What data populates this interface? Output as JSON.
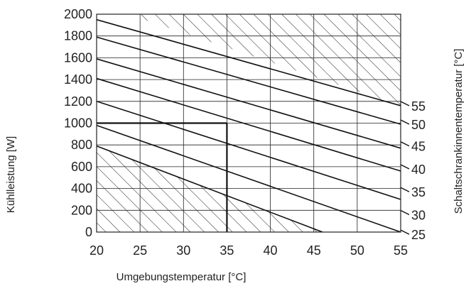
{
  "chart_data": {
    "type": "line",
    "xlabel": "Umgebungstemperatur [°C]",
    "ylabel": "Kühlleistung [W]",
    "y2label": "Schaltschrankinnentemperatur [°C]",
    "xlim": [
      20,
      55
    ],
    "ylim": [
      0,
      2000
    ],
    "x_ticks": [
      "20",
      "25",
      "30",
      "35",
      "40",
      "45",
      "50",
      "55"
    ],
    "y_ticks": [
      "0",
      "200",
      "400",
      "600",
      "800",
      "1000",
      "1200",
      "1400",
      "1600",
      "1800",
      "2000"
    ],
    "grid": true,
    "series": [
      {
        "name": "25",
        "points": [
          [
            20,
            790
          ],
          [
            46,
            0
          ]
        ]
      },
      {
        "name": "30",
        "points": [
          [
            20,
            980
          ],
          [
            55,
            0
          ]
        ]
      },
      {
        "name": "35",
        "points": [
          [
            20,
            1200
          ],
          [
            55,
            300
          ]
        ]
      },
      {
        "name": "40",
        "points": [
          [
            20,
            1410
          ],
          [
            55,
            560
          ]
        ]
      },
      {
        "name": "45",
        "points": [
          [
            20,
            1590
          ],
          [
            55,
            770
          ]
        ]
      },
      {
        "name": "50",
        "points": [
          [
            20,
            1790
          ],
          [
            55,
            990
          ]
        ]
      },
      {
        "name": "55",
        "points": [
          [
            20,
            1950
          ],
          [
            55,
            1160
          ]
        ]
      }
    ],
    "right_labels": [
      {
        "text": "55",
        "y": 1160
      },
      {
        "text": "50",
        "y": 990
      },
      {
        "text": "45",
        "y": 790
      },
      {
        "text": "40",
        "y": 580
      },
      {
        "text": "35",
        "y": 370
      },
      {
        "text": "30",
        "y": 160
      },
      {
        "text": "25",
        "y": -20
      }
    ],
    "hatched_regions": [
      {
        "polygon": [
          [
            20,
            0
          ],
          [
            20,
            790
          ],
          [
            46,
            0
          ]
        ]
      },
      {
        "polygon": [
          [
            23.6,
            2000
          ],
          [
            55,
            2000
          ],
          [
            55,
            1160
          ]
        ]
      }
    ],
    "reference": {
      "x": 35,
      "y": 1000
    }
  }
}
